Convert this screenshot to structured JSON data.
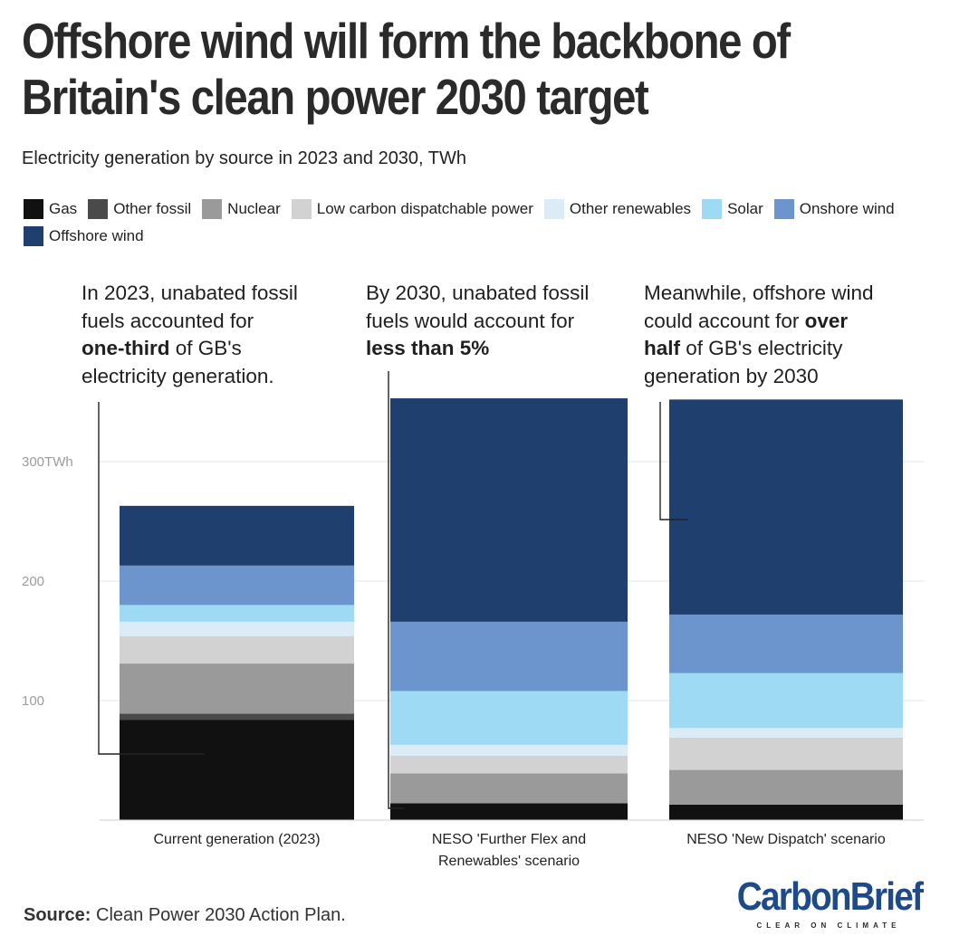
{
  "title_lines": [
    "Offshore wind will form the backbone of",
    "Britain's clean power 2030 target"
  ],
  "subtitle": "Electricity generation by source in 2023 and 2030, TWh",
  "legend": [
    {
      "label": "Gas",
      "color": "#111111"
    },
    {
      "label": "Other fossil",
      "color": "#4a4a4a"
    },
    {
      "label": "Nuclear",
      "color": "#9a9a9a"
    },
    {
      "label": "Low carbon dispatchable power",
      "color": "#d2d2d2"
    },
    {
      "label": "Other renewables",
      "color": "#dcecf7"
    },
    {
      "label": "Solar",
      "color": "#9fdaf5"
    },
    {
      "label": "Onshore wind",
      "color": "#6b95cc"
    },
    {
      "label": "Offshore wind",
      "color": "#1f3f6e"
    }
  ],
  "annotations": {
    "a1": {
      "pre": "In 2023, unabated fossil\nfuels accounted for\n",
      "bold": "one-third",
      "post": " of GB's\nelectricity generation."
    },
    "a2": {
      "pre": "By 2030, unabated fossil\nfuels would account for\n",
      "bold": "less than 5%",
      "post": ""
    },
    "a3": {
      "pre": "Meanwhile, offshore wind\ncould account for ",
      "bold": "over\nhalf",
      "post": " of GB's electricity\ngeneration by 2030"
    }
  },
  "chart_data": {
    "type": "bar",
    "stacked": true,
    "title": "Offshore wind will form the backbone of Britain's clean power 2030 target",
    "ylabel": "TWh",
    "ylim": [
      0,
      350
    ],
    "yticks": [
      {
        "value": 100,
        "label": "100"
      },
      {
        "value": 200,
        "label": "200"
      },
      {
        "value": 300,
        "label": "300TWh"
      }
    ],
    "categories": [
      [
        "Current generation (2023)"
      ],
      [
        "NESO 'Further Flex and",
        "Renewables' scenario"
      ],
      [
        "NESO 'New Dispatch' scenario"
      ]
    ],
    "series": [
      {
        "name": "Gas",
        "values": [
          84,
          14,
          13
        ]
      },
      {
        "name": "Other fossil",
        "values": [
          5,
          0,
          0
        ]
      },
      {
        "name": "Nuclear",
        "values": [
          42,
          25,
          29
        ]
      },
      {
        "name": "Low carbon dispatchable power",
        "values": [
          23,
          15,
          27
        ]
      },
      {
        "name": "Other renewables",
        "values": [
          12,
          9,
          8
        ]
      },
      {
        "name": "Solar",
        "values": [
          14,
          45,
          46
        ]
      },
      {
        "name": "Onshore wind",
        "values": [
          33,
          58,
          49
        ]
      },
      {
        "name": "Offshore wind",
        "values": [
          50,
          187,
          180
        ]
      }
    ]
  },
  "source_label": "Source:",
  "source_text": "Clean Power 2030 Action Plan.",
  "logo": {
    "name": "CarbonBrief",
    "tagline": "CLEAR ON CLIMATE"
  }
}
